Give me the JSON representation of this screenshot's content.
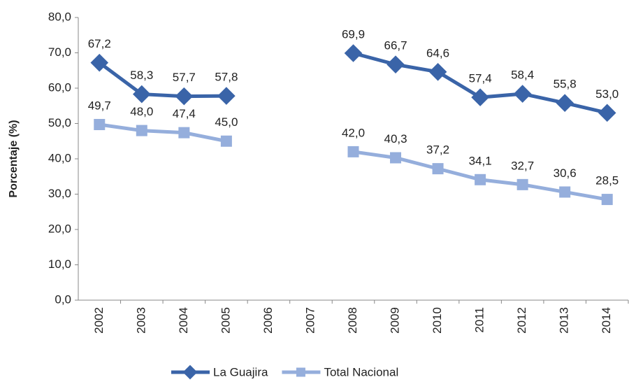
{
  "chart_data": {
    "type": "line",
    "y_label": "Porcentaje (%)",
    "categories": [
      "2002",
      "2003",
      "2004",
      "2005",
      "2006",
      "2007",
      "2008",
      "2009",
      "2010",
      "2011",
      "2012",
      "2013",
      "2014"
    ],
    "series": [
      {
        "name": "La Guajira",
        "color": "#3a64a8",
        "marker": "diamond",
        "values": [
          67.2,
          58.3,
          57.7,
          57.8,
          null,
          null,
          69.9,
          66.7,
          64.6,
          57.4,
          58.4,
          55.8,
          53.0
        ],
        "value_labels": [
          "67,2",
          "58,3",
          "57,7",
          "57,8",
          null,
          null,
          "69,9",
          "66,7",
          "64,6",
          "57,4",
          "58,4",
          "55,8",
          "53,0"
        ]
      },
      {
        "name": "Total Nacional",
        "color": "#95aedc",
        "marker": "square",
        "values": [
          49.7,
          48.0,
          47.4,
          45.0,
          null,
          null,
          42.0,
          40.3,
          37.2,
          34.1,
          32.7,
          30.6,
          28.5
        ],
        "value_labels": [
          "49,7",
          "48,0",
          "47,4",
          "45,0",
          null,
          null,
          "42,0",
          "40,3",
          "37,2",
          "34,1",
          "32,7",
          "30,6",
          "28,5"
        ]
      }
    ],
    "ylim": [
      0,
      80
    ],
    "yticks": [
      {
        "value": 0,
        "label": "0,0"
      },
      {
        "value": 10,
        "label": "10,0"
      },
      {
        "value": 20,
        "label": "20,0"
      },
      {
        "value": 30,
        "label": "30,0"
      },
      {
        "value": 40,
        "label": "40,0"
      },
      {
        "value": 50,
        "label": "50,0"
      },
      {
        "value": 60,
        "label": "60,0"
      },
      {
        "value": 70,
        "label": "70,0"
      },
      {
        "value": 80,
        "label": "80,0"
      }
    ],
    "grid": false,
    "legend": "bottom"
  }
}
